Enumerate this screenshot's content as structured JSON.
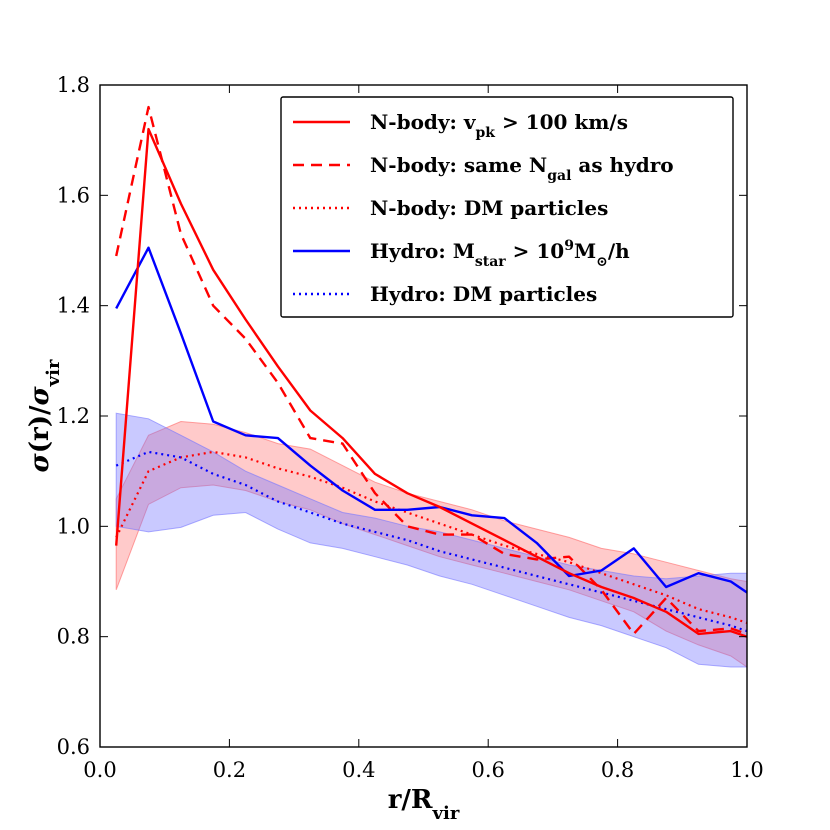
{
  "chart_data": {
    "type": "line",
    "xlabel_main": "r/R",
    "xlabel_sub": "vir",
    "ylabel_pieces": [
      {
        "text": "σ",
        "style": "italic",
        "sub": false
      },
      {
        "text": "(r)/",
        "style": "normal",
        "sub": false
      },
      {
        "text": "σ",
        "style": "italic",
        "sub": false
      },
      {
        "text": "vir",
        "style": "normal",
        "sub": true
      }
    ],
    "xlim": [
      0.0,
      1.0
    ],
    "ylim": [
      0.6,
      1.8
    ],
    "xticks": [
      0.0,
      0.2,
      0.4,
      0.6,
      0.8,
      1.0
    ],
    "xtick_labels": [
      "0.0",
      "0.2",
      "0.4",
      "0.6",
      "0.8",
      "1.0"
    ],
    "yticks": [
      0.6,
      0.8,
      1.0,
      1.2,
      1.4,
      1.6,
      1.8
    ],
    "ytick_labels": [
      "0.6",
      "0.8",
      "1.0",
      "1.2",
      "1.4",
      "1.6",
      "1.8"
    ],
    "legend_position": "top-right",
    "x": [
      0.025,
      0.075,
      0.125,
      0.175,
      0.225,
      0.275,
      0.325,
      0.375,
      0.425,
      0.475,
      0.525,
      0.575,
      0.625,
      0.675,
      0.725,
      0.775,
      0.825,
      0.875,
      0.925,
      0.975,
      1.0
    ],
    "bands": [
      {
        "name": "N-body DM band",
        "color": "#ff6666",
        "opacity": 0.35,
        "upper": [
          1.05,
          1.165,
          1.19,
          1.185,
          1.17,
          1.15,
          1.14,
          1.11,
          1.08,
          1.06,
          1.045,
          1.03,
          1.01,
          0.995,
          0.98,
          0.96,
          0.95,
          0.935,
          0.92,
          0.905,
          0.9
        ],
        "lower": [
          0.885,
          1.04,
          1.07,
          1.075,
          1.065,
          1.045,
          1.03,
          1.005,
          0.985,
          0.965,
          0.945,
          0.93,
          0.915,
          0.9,
          0.885,
          0.865,
          0.845,
          0.81,
          0.785,
          0.765,
          0.745
        ]
      },
      {
        "name": "Hydro DM band",
        "color": "#7777ff",
        "opacity": 0.4,
        "upper": [
          1.205,
          1.195,
          1.165,
          1.135,
          1.1,
          1.075,
          1.05,
          1.025,
          1.015,
          1.0,
          0.99,
          0.975,
          0.96,
          0.945,
          0.93,
          0.92,
          0.91,
          0.905,
          0.91,
          0.915,
          0.915
        ],
        "lower": [
          1.0,
          0.99,
          0.998,
          1.02,
          1.025,
          0.995,
          0.97,
          0.96,
          0.945,
          0.93,
          0.91,
          0.895,
          0.875,
          0.855,
          0.835,
          0.82,
          0.8,
          0.78,
          0.75,
          0.745,
          0.745
        ]
      }
    ],
    "series": [
      {
        "name": "N-body DM particles",
        "color": "#ff0000",
        "style": "dotted",
        "values": [
          0.98,
          1.1,
          1.125,
          1.135,
          1.125,
          1.105,
          1.09,
          1.07,
          1.045,
          1.025,
          1.005,
          0.985,
          0.965,
          0.95,
          0.935,
          0.915,
          0.895,
          0.875,
          0.85,
          0.835,
          0.825
        ]
      },
      {
        "name": "Hydro DM particles",
        "color": "#0000ff",
        "style": "dotted",
        "values": [
          1.11,
          1.135,
          1.125,
          1.095,
          1.075,
          1.045,
          1.025,
          1.005,
          0.99,
          0.975,
          0.955,
          0.94,
          0.925,
          0.91,
          0.895,
          0.88,
          0.865,
          0.85,
          0.835,
          0.82,
          0.81
        ]
      },
      {
        "name": "N-body same Ngal",
        "color": "#ff0000",
        "style": "dashed",
        "values": [
          1.49,
          1.76,
          1.53,
          1.4,
          1.34,
          1.26,
          1.16,
          1.15,
          1.06,
          1.0,
          0.985,
          0.985,
          0.95,
          0.94,
          0.945,
          0.885,
          0.805,
          0.87,
          0.81,
          0.815,
          0.805
        ]
      },
      {
        "name": "Hydro Mstar",
        "color": "#0000ff",
        "style": "solid",
        "values": [
          1.395,
          1.505,
          1.35,
          1.19,
          1.165,
          1.16,
          1.11,
          1.065,
          1.03,
          1.03,
          1.035,
          1.02,
          1.015,
          0.97,
          0.91,
          0.92,
          0.96,
          0.89,
          0.915,
          0.9,
          0.88
        ]
      },
      {
        "name": "N-body vpk",
        "color": "#ff0000",
        "style": "solid",
        "values": [
          0.965,
          1.72,
          1.585,
          1.465,
          1.375,
          1.29,
          1.21,
          1.16,
          1.095,
          1.06,
          1.035,
          1.005,
          0.975,
          0.945,
          0.915,
          0.89,
          0.87,
          0.845,
          0.805,
          0.81,
          0.8
        ]
      }
    ],
    "legend": [
      {
        "color": "#ff0000",
        "style": "solid",
        "parts": [
          {
            "t": "N-body: v",
            "s": "n"
          },
          {
            "t": "pk",
            "s": "sub"
          },
          {
            "t": " > 100 km/s",
            "s": "n"
          }
        ]
      },
      {
        "color": "#ff0000",
        "style": "dashed",
        "parts": [
          {
            "t": "N-body: same N",
            "s": "n"
          },
          {
            "t": "gal",
            "s": "sub"
          },
          {
            "t": " as hydro",
            "s": "n"
          }
        ]
      },
      {
        "color": "#ff0000",
        "style": "dotted",
        "parts": [
          {
            "t": "N-body: DM particles",
            "s": "n"
          }
        ]
      },
      {
        "color": "#0000ff",
        "style": "solid",
        "parts": [
          {
            "t": "Hydro: M",
            "s": "n"
          },
          {
            "t": "star",
            "s": "sub"
          },
          {
            "t": " > 10",
            "s": "n"
          },
          {
            "t": "9",
            "s": "sup"
          },
          {
            "t": "M",
            "s": "n"
          },
          {
            "t": "⊙",
            "s": "sub"
          },
          {
            "t": "/h",
            "s": "n"
          }
        ]
      },
      {
        "color": "#0000ff",
        "style": "dotted",
        "parts": [
          {
            "t": "Hydro: DM particles",
            "s": "n"
          }
        ]
      }
    ]
  }
}
